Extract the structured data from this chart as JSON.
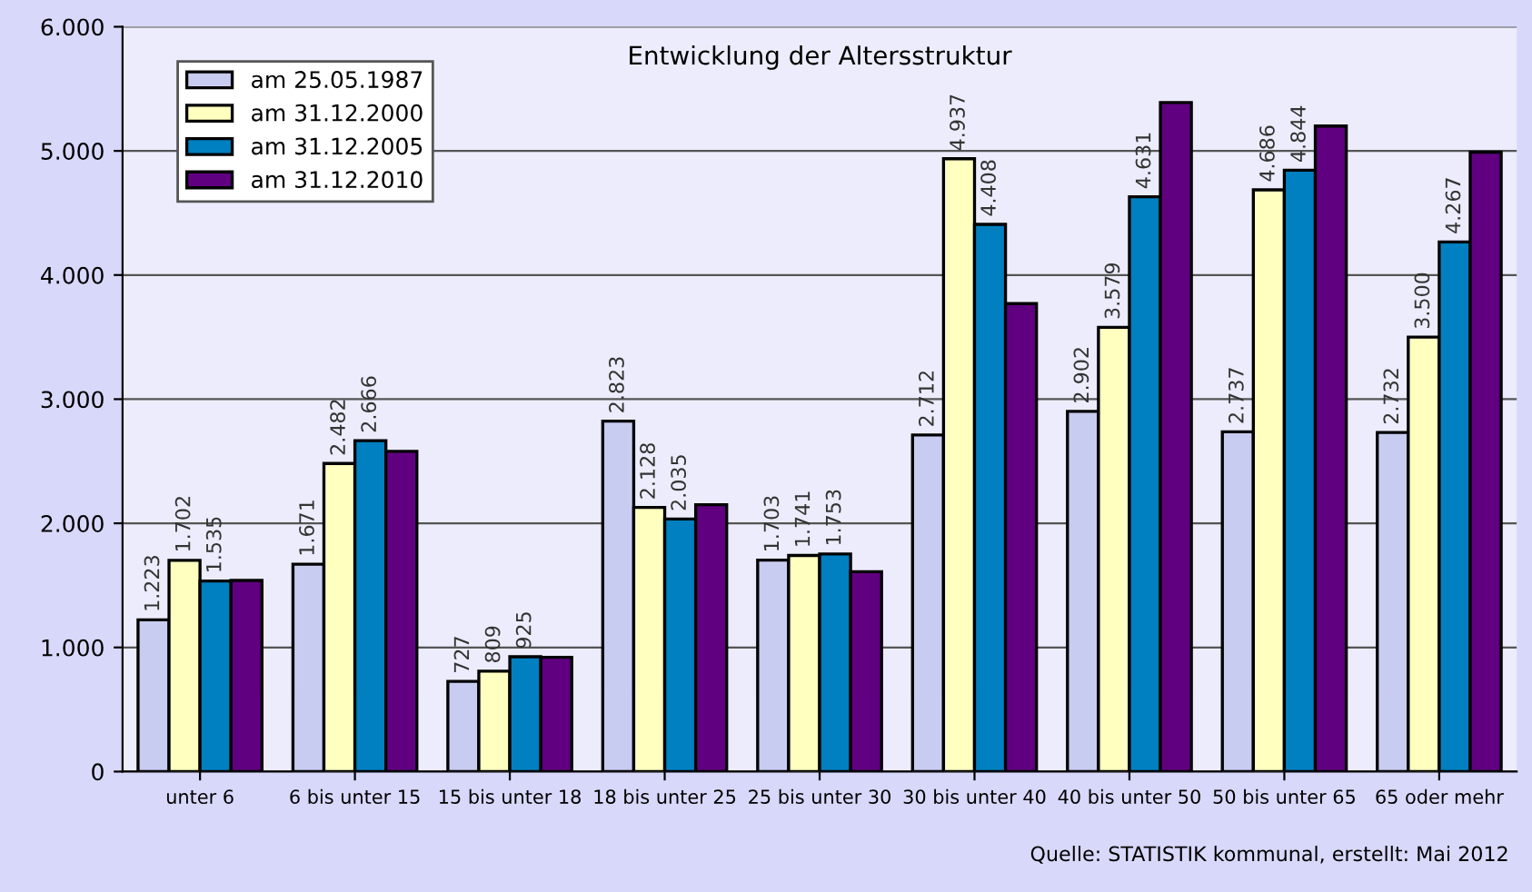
{
  "chart_data": {
    "type": "bar",
    "title": "Entwicklung der Altersstruktur",
    "categories": [
      "unter 6",
      "6 bis unter 15",
      "15 bis unter 18",
      "18 bis unter 25",
      "25 bis unter 30",
      "30 bis unter 40",
      "40 bis unter 50",
      "50 bis unter 65",
      "65 oder mehr"
    ],
    "series": [
      {
        "name": "am 25.05.1987",
        "color": "#c8ccf0",
        "values": [
          1223,
          1671,
          727,
          2823,
          1703,
          2712,
          2902,
          2737,
          2732
        ],
        "value_labels": [
          "1.223",
          "1.671",
          "727",
          "2.823",
          "1.703",
          "2.712",
          "2.902",
          "2.737",
          "2.732"
        ]
      },
      {
        "name": "am 31.12.2000",
        "color": "#ffffc0",
        "values": [
          1702,
          2482,
          809,
          2128,
          1741,
          4937,
          3579,
          4686,
          3500
        ],
        "value_labels": [
          "1.702",
          "2.482",
          "809",
          "2.128",
          "1.741",
          "4.937",
          "3.579",
          "4.686",
          "3.500"
        ]
      },
      {
        "name": "am 31.12.2005",
        "color": "#0080c0",
        "values": [
          1535,
          2666,
          925,
          2035,
          1753,
          4408,
          4631,
          4844,
          4267
        ],
        "value_labels": [
          "1.535",
          "2.666",
          "925",
          "2.035",
          "1.753",
          "4.408",
          "4.631",
          "4.844",
          "4.267"
        ]
      },
      {
        "name": "am 31.12.2010",
        "color": "#600080",
        "values": [
          1540,
          2580,
          920,
          2150,
          1610,
          3770,
          5390,
          5200,
          4990
        ]
      }
    ],
    "ylim": [
      0,
      6000
    ],
    "yticks": [
      0,
      {
        "value": 1000,
        "label": "1.000"
      },
      {
        "value": 2000,
        "label": "2.000"
      },
      {
        "value": 3000,
        "label": "3.000"
      },
      {
        "value": 4000,
        "label": "4.000"
      },
      {
        "value": 5000,
        "label": "5.000"
      },
      {
        "value": 6000,
        "label": "6.000"
      }
    ],
    "grid": "y",
    "legend": "top left",
    "annotations": [
      "Quelle: STATISTIK kommunal, erstellt: Mai 2012"
    ]
  }
}
